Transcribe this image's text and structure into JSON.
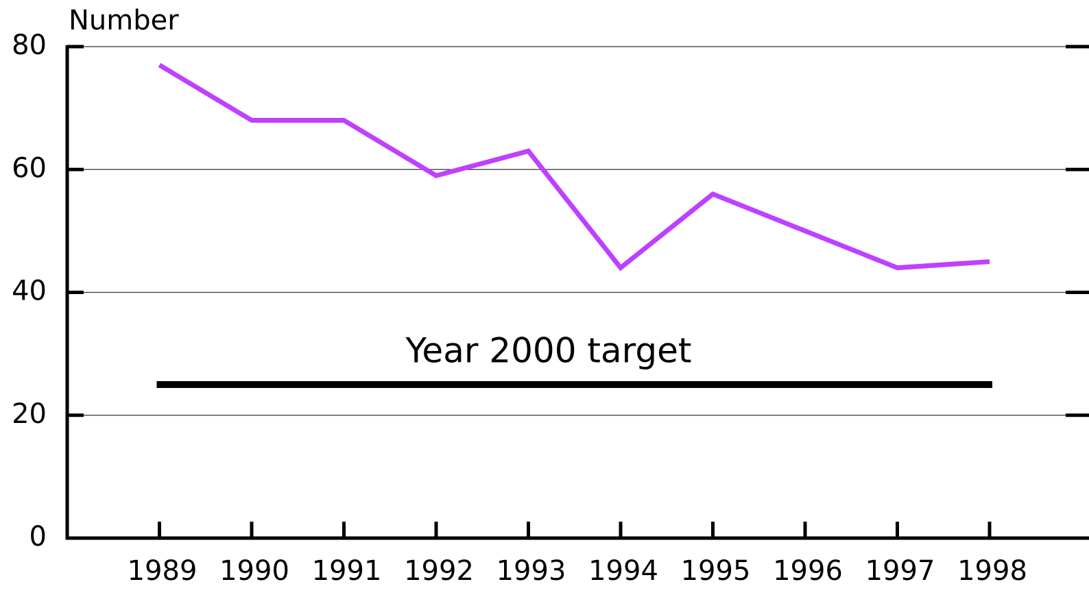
{
  "chart_data": {
    "type": "line",
    "y_label": "Number",
    "categories": [
      "1989",
      "1990",
      "1991",
      "1992",
      "1993",
      "1994",
      "1995",
      "1996",
      "1997",
      "1998"
    ],
    "series": [
      {
        "name": null,
        "color": "#bf40ff",
        "values": [
          77,
          68,
          68,
          59,
          63,
          44,
          56,
          50,
          44,
          45
        ]
      }
    ],
    "target": {
      "label": "Year 2000 target",
      "value": 25,
      "color": "#000000"
    },
    "ylim": [
      0,
      80
    ],
    "yticks": [
      0,
      20,
      40,
      60,
      80
    ],
    "grid": true
  }
}
